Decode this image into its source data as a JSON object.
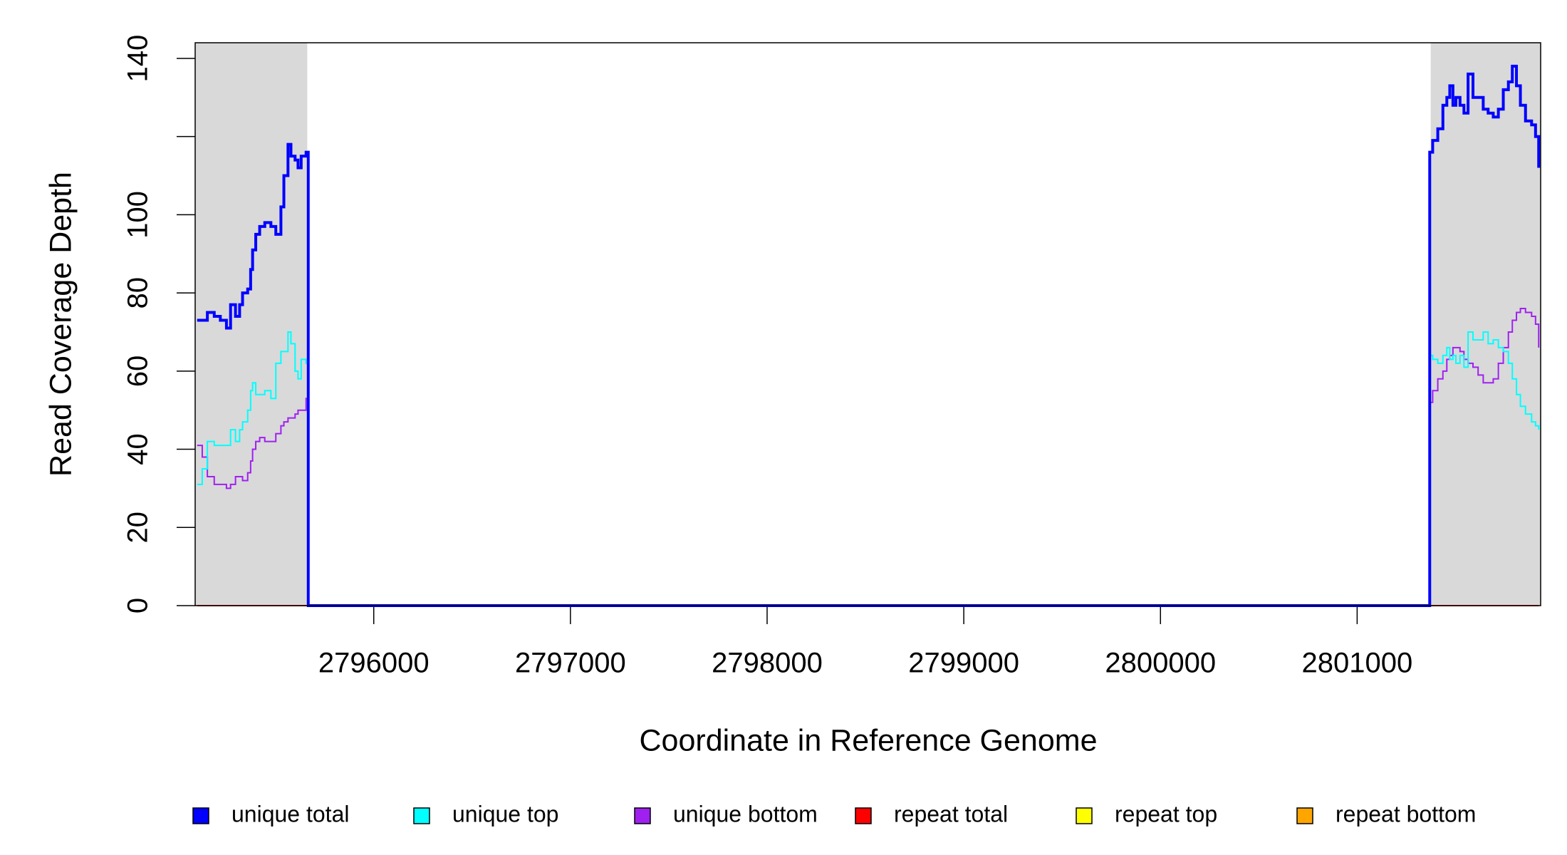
{
  "chart_data": {
    "type": "line",
    "xlabel": "Coordinate in Reference Genome",
    "ylabel": "Read Coverage Depth",
    "xlim": [
      2795092,
      2801933
    ],
    "ylim": [
      0,
      144
    ],
    "xticks": [
      2796000,
      2797000,
      2798000,
      2799000,
      2800000,
      2801000
    ],
    "yticks": [
      0,
      20,
      40,
      60,
      80,
      100,
      {
        "value": 120,
        "label": null
      },
      140
    ],
    "shaded_regions": [
      [
        2795092,
        2795662
      ],
      [
        2801374,
        2801933
      ]
    ],
    "shade_color": "#d9d9d9",
    "step": true,
    "x": [
      2795102,
      2795128,
      2795154,
      2795189,
      2795220,
      2795251,
      2795272,
      2795297,
      2795318,
      2795333,
      2795359,
      2795374,
      2795384,
      2795400,
      2795420,
      2795446,
      2795477,
      2795502,
      2795528,
      2795543,
      2795564,
      2795579,
      2795600,
      2795615,
      2795631,
      2795656,
      2795667,
      2801360,
      2801369,
      2801384,
      2801410,
      2801436,
      2801456,
      2801471,
      2801487,
      2801502,
      2801523,
      2801543,
      2801564,
      2801589,
      2801615,
      2801641,
      2801666,
      2801692,
      2801718,
      2801743,
      2801769,
      2801789,
      2801810,
      2801830,
      2801856,
      2801887,
      2801907,
      2801923
    ],
    "series": [
      {
        "name": "unique total",
        "color": "#0000ff",
        "width": 4,
        "values": [
          73,
          73,
          75,
          74,
          73,
          71,
          77,
          74,
          77,
          80,
          81,
          86,
          91,
          95,
          97,
          98,
          97,
          95,
          102,
          110,
          118,
          115,
          114,
          112,
          115,
          116,
          0,
          0,
          116,
          119,
          122,
          128,
          130,
          133,
          128,
          130,
          128,
          126,
          136,
          130,
          130,
          127,
          126,
          125,
          127,
          132,
          134,
          138,
          133,
          128,
          124,
          123,
          120,
          112
        ]
      },
      {
        "name": "unique top",
        "color": "#00ffff",
        "width": 2,
        "values": [
          31,
          35,
          42,
          41,
          41,
          41,
          45,
          42,
          45,
          47,
          50,
          55,
          57,
          54,
          54,
          55,
          53,
          62,
          65,
          65,
          70,
          67,
          60,
          58,
          63,
          62,
          0,
          0,
          64,
          63,
          62,
          64,
          66,
          63,
          64,
          62,
          64,
          61,
          70,
          68,
          68,
          70,
          67,
          68,
          66,
          65,
          62,
          58,
          54,
          51,
          49,
          47,
          46,
          45
        ]
      },
      {
        "name": "unique bottom",
        "color": "#a020f0",
        "width": 2,
        "values": [
          41,
          38,
          33,
          31,
          31,
          30,
          31,
          33,
          33,
          32,
          34,
          37,
          40,
          42,
          43,
          42,
          42,
          44,
          46,
          47,
          48,
          48,
          49,
          50,
          50,
          53,
          0,
          0,
          52,
          55,
          58,
          60,
          63,
          64,
          66,
          66,
          65,
          63,
          62,
          61,
          59,
          57,
          57,
          58,
          62,
          66,
          70,
          73,
          75,
          76,
          75,
          74,
          72,
          66
        ]
      },
      {
        "name": "repeat total",
        "color": "#ff0000",
        "width": 2,
        "values": [
          0,
          0,
          0,
          0,
          0,
          0,
          0,
          0,
          0,
          0,
          0,
          0,
          0,
          0,
          0,
          0,
          0,
          0,
          0,
          0,
          0,
          0,
          0,
          0,
          0,
          0,
          0,
          0,
          0,
          0,
          0,
          0,
          0,
          0,
          0,
          0,
          0,
          0,
          0,
          0,
          0,
          0,
          0,
          0,
          0,
          0,
          0,
          0,
          0,
          0,
          0,
          0,
          0,
          0
        ]
      },
      {
        "name": "repeat top",
        "color": "#ffff00",
        "width": 2,
        "values": [
          0,
          0,
          0,
          0,
          0,
          0,
          0,
          0,
          0,
          0,
          0,
          0,
          0,
          0,
          0,
          0,
          0,
          0,
          0,
          0,
          0,
          0,
          0,
          0,
          0,
          0,
          0,
          0,
          0,
          0,
          0,
          0,
          0,
          0,
          0,
          0,
          0,
          0,
          0,
          0,
          0,
          0,
          0,
          0,
          0,
          0,
          0,
          0,
          0,
          0,
          0,
          0,
          0,
          0
        ]
      },
      {
        "name": "repeat bottom",
        "color": "#ffa500",
        "width": 2,
        "values": [
          0,
          0,
          0,
          0,
          0,
          0,
          0,
          0,
          0,
          0,
          0,
          0,
          0,
          0,
          0,
          0,
          0,
          0,
          0,
          0,
          0,
          0,
          0,
          0,
          0,
          0,
          0,
          0,
          0,
          0,
          0,
          0,
          0,
          0,
          0,
          0,
          0,
          0,
          0,
          0,
          0,
          0,
          0,
          0,
          0,
          0,
          0,
          0,
          0,
          0,
          0,
          0,
          0,
          0
        ]
      }
    ]
  }
}
